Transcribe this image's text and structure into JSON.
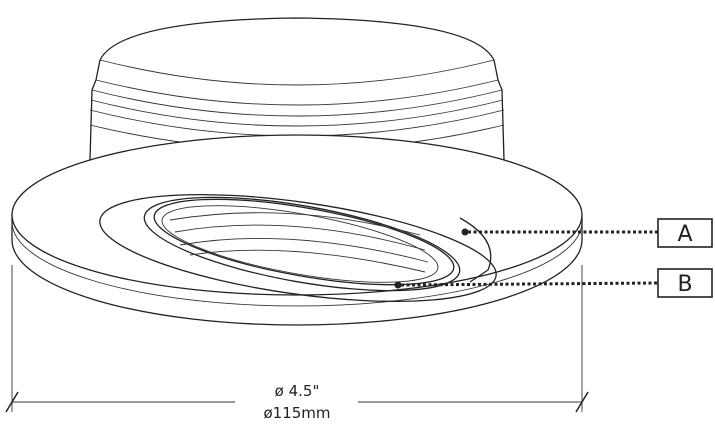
{
  "callouts": {
    "a": "A",
    "b": "B"
  },
  "dimension": {
    "imperial": "ø 4.5\"",
    "metric": "ø115mm"
  }
}
